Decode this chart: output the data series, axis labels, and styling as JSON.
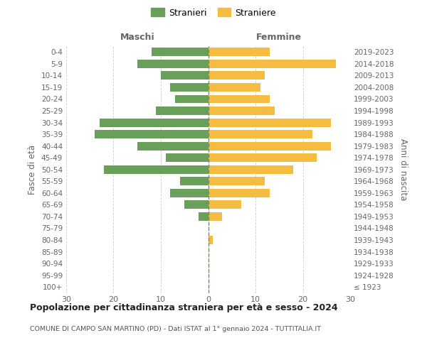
{
  "age_groups": [
    "100+",
    "95-99",
    "90-94",
    "85-89",
    "80-84",
    "75-79",
    "70-74",
    "65-69",
    "60-64",
    "55-59",
    "50-54",
    "45-49",
    "40-44",
    "35-39",
    "30-34",
    "25-29",
    "20-24",
    "15-19",
    "10-14",
    "5-9",
    "0-4"
  ],
  "birth_years": [
    "≤ 1923",
    "1924-1928",
    "1929-1933",
    "1934-1938",
    "1939-1943",
    "1944-1948",
    "1949-1953",
    "1954-1958",
    "1959-1963",
    "1964-1968",
    "1969-1973",
    "1974-1978",
    "1979-1983",
    "1984-1988",
    "1989-1993",
    "1994-1998",
    "1999-2003",
    "2004-2008",
    "2009-2013",
    "2014-2018",
    "2019-2023"
  ],
  "maschi": [
    0,
    0,
    0,
    0,
    0,
    0,
    2,
    5,
    8,
    6,
    22,
    9,
    15,
    24,
    23,
    11,
    7,
    8,
    10,
    15,
    12
  ],
  "femmine": [
    0,
    0,
    0,
    0,
    1,
    0,
    3,
    7,
    13,
    12,
    18,
    23,
    26,
    22,
    26,
    14,
    13,
    11,
    12,
    27,
    13
  ],
  "male_color": "#6a9e5b",
  "female_color": "#f5bc42",
  "background_color": "#ffffff",
  "grid_color": "#cccccc",
  "title": "Popolazione per cittadinanza straniera per età e sesso - 2024",
  "subtitle": "COMUNE DI CAMPO SAN MARTINO (PD) - Dati ISTAT al 1° gennaio 2024 - TUTTITALIA.IT",
  "xlabel_left": "Maschi",
  "xlabel_right": "Femmine",
  "ylabel_left": "Fasce di età",
  "ylabel_right": "Anni di nascita",
  "legend_male": "Stranieri",
  "legend_female": "Straniere",
  "xlim": 30,
  "xticks": [
    -30,
    -20,
    -10,
    0,
    10,
    20,
    30
  ],
  "xtick_labels": [
    "30",
    "20",
    "10",
    "0",
    "10",
    "20",
    "30"
  ]
}
